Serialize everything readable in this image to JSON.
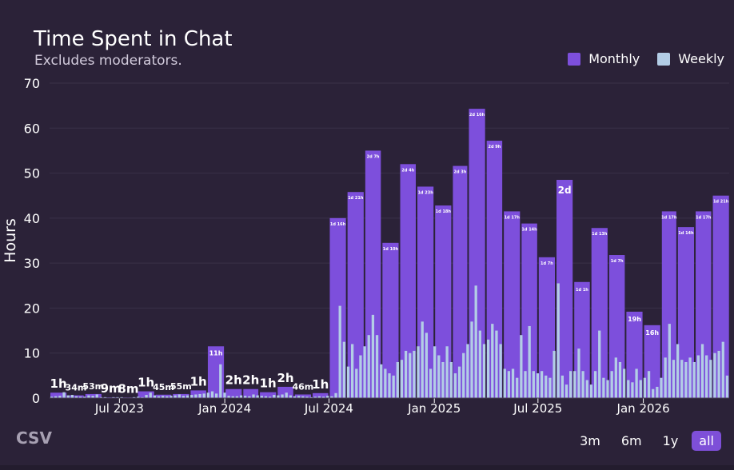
{
  "header": {
    "title": "Time Spent in Chat",
    "subtitle": "Excludes moderators."
  },
  "legend": [
    {
      "label": "Monthly",
      "color": "#7d4fdc"
    },
    {
      "label": "Weekly",
      "color": "#b3cde6"
    }
  ],
  "footer": {
    "csv_label": "CSV",
    "ranges": [
      {
        "label": "3m",
        "active": false
      },
      {
        "label": "6m",
        "active": false
      },
      {
        "label": "1y",
        "active": false
      },
      {
        "label": "all",
        "active": true
      }
    ]
  },
  "chart_data": {
    "type": "bar",
    "title": "Time Spent in Chat",
    "subtitle": "Excludes moderators.",
    "ylabel": "Hours",
    "xlabel": "",
    "ylim": [
      0,
      70
    ],
    "yticks": [
      0,
      10,
      20,
      30,
      40,
      50,
      60,
      70
    ],
    "grid": true,
    "legend_position": "top-right",
    "x_start": "2023-03-01",
    "x_end": "2026-05-31",
    "x_ticks": [
      {
        "date": "2023-07-01",
        "label": "Jul 2023"
      },
      {
        "date": "2024-01-01",
        "label": "Jan 2024"
      },
      {
        "date": "2024-07-01",
        "label": "Jul 2024"
      },
      {
        "date": "2025-01-01",
        "label": "Jan 2025"
      },
      {
        "date": "2025-07-01",
        "label": "Jul 2025"
      },
      {
        "date": "2026-01-01",
        "label": "Jan 2026"
      }
    ],
    "monthly": {
      "name": "Monthly",
      "color": "#7d4fdc",
      "months": [
        "2023-03",
        "2023-04",
        "2023-05",
        "2023-06",
        "2023-07",
        "2023-08",
        "2023-09",
        "2023-10",
        "2023-11",
        "2023-12",
        "2024-01",
        "2024-02",
        "2024-03",
        "2024-04",
        "2024-05",
        "2024-06",
        "2024-07",
        "2024-08",
        "2024-09",
        "2024-10",
        "2024-11",
        "2024-12",
        "2025-01",
        "2025-02",
        "2025-03",
        "2025-04",
        "2025-05",
        "2025-06",
        "2025-07",
        "2025-08",
        "2025-09",
        "2025-10",
        "2025-11",
        "2025-12",
        "2026-01",
        "2026-02",
        "2026-03",
        "2026-04",
        "2026-05"
      ],
      "values": [
        1.2,
        0.6,
        0.9,
        0.15,
        0.13,
        1.5,
        0.75,
        0.9,
        1.7,
        11.5,
        2.0,
        2.0,
        1.3,
        2.5,
        0.8,
        1.1,
        40.0,
        45.8,
        55.0,
        34.5,
        52.0,
        47.0,
        42.8,
        51.6,
        64.3,
        57.2,
        41.5,
        38.8,
        31.3,
        48.5,
        25.8,
        37.8,
        31.8,
        19.2,
        16.2,
        41.5,
        38.0,
        41.5,
        45.0
      ],
      "labels": [
        "1h",
        "34m",
        "53m",
        "9m",
        "8m",
        "1h",
        "45m",
        "55m",
        "1h",
        "11h",
        "2h",
        "2h",
        "1h",
        "2h",
        "46m",
        "1h",
        "1d 16h",
        "1d 21h",
        "2d 7h",
        "1d 10h",
        "2d 4h",
        "1d 23h",
        "1d 18h",
        "2d 3h",
        "2d 16h",
        "2d 9h",
        "1d 17h",
        "1d 14h",
        "1d 7h",
        "2d",
        "1d 1h",
        "1d 13h",
        "1d 7h",
        "19h",
        "16h",
        "1d 17h",
        "1d 14h",
        "1d 17h",
        "1d 21h"
      ]
    },
    "weekly": {
      "name": "Weekly",
      "color": "#b3cde6",
      "values": [
        0.3,
        0.4,
        0.5,
        1.3,
        0.6,
        0.7,
        0.4,
        0.3,
        0.3,
        0.6,
        0.5,
        0.8,
        0.2,
        0.2,
        0.1,
        0.2,
        0.2,
        0.2,
        0.1,
        0.1,
        0.2,
        0.3,
        0.2,
        0.7,
        1.2,
        0.6,
        0.4,
        0.5,
        0.4,
        0.5,
        0.6,
        0.8,
        0.5,
        0.6,
        0.7,
        0.8,
        0.9,
        1.0,
        1.2,
        1.5,
        1.0,
        7.5,
        1.2,
        0.5,
        0.4,
        0.4,
        0.6,
        0.5,
        0.4,
        0.8,
        0.6,
        0.5,
        0.4,
        0.3,
        0.7,
        0.6,
        0.8,
        1.2,
        0.6,
        0.4,
        0.5,
        0.4,
        0.3,
        0.2,
        0.3,
        0.4,
        0.3,
        0.5,
        0.4,
        1.1,
        20.5,
        12.5,
        7.0,
        12.0,
        6.5,
        9.5,
        11.5,
        14.0,
        18.5,
        14.0,
        7.5,
        6.5,
        5.5,
        5.0,
        8.0,
        8.5,
        10.5,
        10.0,
        10.5,
        11.5,
        17.0,
        14.5,
        6.5,
        11.5,
        9.5,
        8.0,
        11.5,
        8.0,
        5.5,
        7.0,
        10.0,
        12.0,
        17.0,
        25.0,
        15.0,
        12.0,
        13.0,
        16.5,
        15.0,
        12.0,
        6.5,
        6.0,
        6.5,
        4.5,
        14.0,
        6.0,
        16.0,
        6.0,
        5.5,
        6.0,
        5.0,
        4.5,
        10.5,
        25.5,
        5.0,
        3.0,
        6.0,
        6.0,
        11.0,
        6.0,
        4.0,
        3.0,
        6.0,
        15.0,
        4.5,
        4.0,
        6.0,
        9.0,
        8.0,
        6.5,
        4.0,
        3.5,
        6.5,
        4.0,
        4.5,
        6.0,
        2.0,
        2.5,
        4.5,
        9.0,
        16.5,
        8.5,
        12.0,
        8.5,
        8.0,
        9.0,
        8.0,
        9.5,
        12.0,
        9.5,
        8.5,
        10.0,
        10.5,
        12.5,
        5.0
      ]
    }
  }
}
